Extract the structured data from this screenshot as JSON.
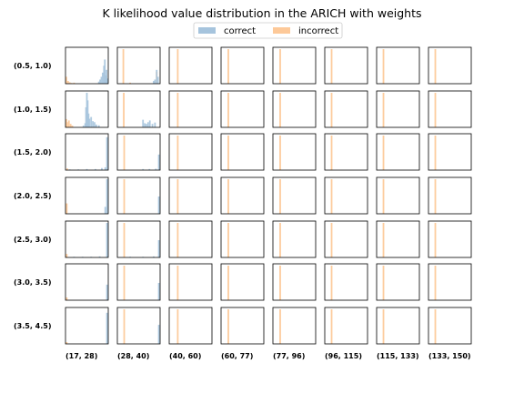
{
  "chart_data": {
    "type": "histogram-grid",
    "title": "K likelihood value distribution in the ARICH with weights",
    "legend": {
      "placement": "top-center",
      "entries": [
        {
          "label": "correct",
          "color": "#a6c4dd"
        },
        {
          "label": "incorrect",
          "color": "#fdc999"
        }
      ]
    },
    "row_labels": [
      "(0.5, 1.0)",
      "(1.0, 1.5)",
      "(1.5, 2.0)",
      "(2.0, 2.5)",
      "(2.5, 3.0)",
      "(3.0, 3.5)",
      "(3.5, 4.5)"
    ],
    "col_labels": [
      "(17, 28)",
      "(28, 40)",
      "(40, 60)",
      "(60, 77)",
      "(77, 96)",
      "(96, 115)",
      "(115, 133)",
      "(133, 150)"
    ],
    "x_range": [
      0,
      1
    ],
    "y_range": [
      0,
      1
    ],
    "grid": false,
    "panels": [
      {
        "row": 0,
        "col": 0,
        "correct": [
          [
            0.78,
            0.06
          ],
          [
            0.81,
            0.12
          ],
          [
            0.84,
            0.2
          ],
          [
            0.87,
            0.32
          ],
          [
            0.9,
            0.52
          ],
          [
            0.92,
            0.7
          ],
          [
            0.94,
            0.24
          ],
          [
            0.96,
            0.4
          ],
          [
            0.98,
            0.15
          ]
        ],
        "incorrect": [
          [
            0.02,
            0.2
          ],
          [
            0.06,
            0.08
          ],
          [
            0.1,
            0.04
          ],
          [
            0.14,
            0.02
          ],
          [
            0.2,
            0.03
          ]
        ]
      },
      {
        "row": 0,
        "col": 1,
        "correct": [
          [
            0.85,
            0.08
          ],
          [
            0.88,
            0.12
          ],
          [
            0.92,
            0.4
          ],
          [
            0.95,
            0.2
          ]
        ],
        "incorrect": [
          [
            0.14,
            1.0
          ],
          [
            0.3,
            0.03
          ],
          [
            0.92,
            0.35
          ]
        ]
      },
      {
        "row": 0,
        "col": 2,
        "correct": [],
        "incorrect": [
          [
            0.2,
            1.0
          ]
        ]
      },
      {
        "row": 0,
        "col": 3,
        "correct": [],
        "incorrect": [
          [
            0.17,
            1.0
          ]
        ]
      },
      {
        "row": 0,
        "col": 4,
        "correct": [],
        "incorrect": [
          [
            0.17,
            1.0
          ]
        ]
      },
      {
        "row": 0,
        "col": 5,
        "correct": [],
        "incorrect": [
          [
            0.16,
            1.0
          ]
        ]
      },
      {
        "row": 0,
        "col": 6,
        "correct": [],
        "incorrect": [
          [
            0.16,
            1.0
          ]
        ]
      },
      {
        "row": 0,
        "col": 7,
        "correct": [],
        "incorrect": [
          [
            0.16,
            1.0
          ]
        ]
      },
      {
        "row": 1,
        "col": 0,
        "correct": [
          [
            0.42,
            0.05
          ],
          [
            0.46,
            0.12
          ],
          [
            0.48,
            0.58
          ],
          [
            0.5,
            1.0
          ],
          [
            0.52,
            0.78
          ],
          [
            0.54,
            0.4
          ],
          [
            0.56,
            0.25
          ],
          [
            0.6,
            0.3
          ],
          [
            0.64,
            0.18
          ],
          [
            0.68,
            0.15
          ],
          [
            0.72,
            0.08
          ],
          [
            0.78,
            0.06
          ]
        ],
        "incorrect": [
          [
            0.02,
            0.24
          ],
          [
            0.04,
            0.15
          ],
          [
            0.08,
            0.2
          ],
          [
            0.12,
            0.1
          ],
          [
            0.16,
            0.05
          ]
        ]
      },
      {
        "row": 1,
        "col": 1,
        "correct": [
          [
            0.6,
            0.22
          ],
          [
            0.64,
            0.12
          ],
          [
            0.68,
            0.1
          ],
          [
            0.72,
            0.15
          ],
          [
            0.76,
            0.2
          ],
          [
            0.82,
            0.1
          ],
          [
            0.88,
            0.14
          ]
        ],
        "incorrect": [
          [
            0.15,
            1.0
          ]
        ]
      },
      {
        "row": 1,
        "col": 2,
        "correct": [],
        "incorrect": [
          [
            0.2,
            1.0
          ]
        ]
      },
      {
        "row": 1,
        "col": 3,
        "correct": [],
        "incorrect": [
          [
            0.17,
            1.0
          ]
        ]
      },
      {
        "row": 1,
        "col": 4,
        "correct": [],
        "incorrect": [
          [
            0.17,
            1.0
          ]
        ]
      },
      {
        "row": 1,
        "col": 5,
        "correct": [],
        "incorrect": [
          [
            0.16,
            1.0
          ]
        ]
      },
      {
        "row": 1,
        "col": 6,
        "correct": [],
        "incorrect": [
          [
            0.16,
            1.0
          ]
        ]
      },
      {
        "row": 1,
        "col": 7,
        "correct": [],
        "incorrect": [
          [
            0.16,
            1.0
          ]
        ]
      },
      {
        "row": 2,
        "col": 0,
        "correct": [
          [
            0.1,
            0.02
          ],
          [
            0.3,
            0.02
          ],
          [
            0.5,
            0.03
          ],
          [
            0.7,
            0.03
          ],
          [
            0.85,
            0.06
          ],
          [
            0.93,
            0.08
          ],
          [
            0.97,
            0.95
          ]
        ],
        "incorrect": [
          [
            0.04,
            0.05
          ]
        ]
      },
      {
        "row": 2,
        "col": 1,
        "correct": [
          [
            0.6,
            0.03
          ],
          [
            0.75,
            0.03
          ],
          [
            0.9,
            0.04
          ],
          [
            0.97,
            0.45
          ]
        ],
        "incorrect": [
          [
            0.16,
            1.0
          ]
        ]
      },
      {
        "row": 2,
        "col": 2,
        "correct": [],
        "incorrect": [
          [
            0.2,
            1.0
          ]
        ]
      },
      {
        "row": 2,
        "col": 3,
        "correct": [],
        "incorrect": [
          [
            0.17,
            1.0
          ]
        ]
      },
      {
        "row": 2,
        "col": 4,
        "correct": [],
        "incorrect": [
          [
            0.17,
            1.0
          ]
        ]
      },
      {
        "row": 2,
        "col": 5,
        "correct": [],
        "incorrect": [
          [
            0.16,
            1.0
          ]
        ]
      },
      {
        "row": 2,
        "col": 6,
        "correct": [],
        "incorrect": [
          [
            0.16,
            1.0
          ]
        ]
      },
      {
        "row": 2,
        "col": 7,
        "correct": [],
        "incorrect": [
          [
            0.16,
            1.0
          ]
        ]
      },
      {
        "row": 3,
        "col": 0,
        "correct": [
          [
            0.93,
            0.2
          ],
          [
            0.97,
            1.0
          ]
        ],
        "incorrect": [
          [
            0.03,
            0.3
          ]
        ]
      },
      {
        "row": 3,
        "col": 1,
        "correct": [
          [
            0.97,
            0.5
          ]
        ],
        "incorrect": [
          [
            0.16,
            1.0
          ]
        ]
      },
      {
        "row": 3,
        "col": 2,
        "correct": [],
        "incorrect": [
          [
            0.2,
            1.0
          ]
        ]
      },
      {
        "row": 3,
        "col": 3,
        "correct": [],
        "incorrect": [
          [
            0.17,
            1.0
          ]
        ]
      },
      {
        "row": 3,
        "col": 4,
        "correct": [],
        "incorrect": [
          [
            0.17,
            1.0
          ]
        ]
      },
      {
        "row": 3,
        "col": 5,
        "correct": [],
        "incorrect": [
          [
            0.16,
            1.0
          ]
        ]
      },
      {
        "row": 3,
        "col": 6,
        "correct": [],
        "incorrect": [
          [
            0.16,
            1.0
          ]
        ]
      },
      {
        "row": 3,
        "col": 7,
        "correct": [],
        "incorrect": [
          [
            0.16,
            1.0
          ]
        ]
      },
      {
        "row": 4,
        "col": 0,
        "correct": [
          [
            0.2,
            0.02
          ],
          [
            0.4,
            0.02
          ],
          [
            0.6,
            0.02
          ],
          [
            0.8,
            0.03
          ],
          [
            0.97,
            1.0
          ]
        ],
        "incorrect": [
          [
            0.03,
            0.1
          ]
        ]
      },
      {
        "row": 4,
        "col": 1,
        "correct": [
          [
            0.3,
            0.02
          ],
          [
            0.6,
            0.02
          ],
          [
            0.85,
            0.03
          ],
          [
            0.97,
            0.5
          ]
        ],
        "incorrect": [
          [
            0.16,
            1.0
          ]
        ]
      },
      {
        "row": 4,
        "col": 2,
        "correct": [],
        "incorrect": [
          [
            0.2,
            1.0
          ]
        ]
      },
      {
        "row": 4,
        "col": 3,
        "correct": [],
        "incorrect": [
          [
            0.17,
            1.0
          ]
        ]
      },
      {
        "row": 4,
        "col": 4,
        "correct": [],
        "incorrect": [
          [
            0.17,
            1.0
          ]
        ]
      },
      {
        "row": 4,
        "col": 5,
        "correct": [],
        "incorrect": [
          [
            0.16,
            1.0
          ]
        ]
      },
      {
        "row": 4,
        "col": 6,
        "correct": [],
        "incorrect": [
          [
            0.16,
            1.0
          ]
        ]
      },
      {
        "row": 4,
        "col": 7,
        "correct": [],
        "incorrect": [
          [
            0.16,
            1.0
          ]
        ]
      },
      {
        "row": 5,
        "col": 0,
        "correct": [
          [
            0.97,
            0.45
          ]
        ],
        "incorrect": [
          [
            0.03,
            0.08
          ]
        ]
      },
      {
        "row": 5,
        "col": 1,
        "correct": [
          [
            0.97,
            0.5
          ]
        ],
        "incorrect": [
          [
            0.16,
            1.0
          ]
        ]
      },
      {
        "row": 5,
        "col": 2,
        "correct": [],
        "incorrect": [
          [
            0.2,
            1.0
          ]
        ]
      },
      {
        "row": 5,
        "col": 3,
        "correct": [],
        "incorrect": [
          [
            0.17,
            1.0
          ]
        ]
      },
      {
        "row": 5,
        "col": 4,
        "correct": [],
        "incorrect": [
          [
            0.17,
            1.0
          ]
        ]
      },
      {
        "row": 5,
        "col": 5,
        "correct": [],
        "incorrect": [
          [
            0.16,
            1.0
          ]
        ]
      },
      {
        "row": 5,
        "col": 6,
        "correct": [],
        "incorrect": [
          [
            0.16,
            1.0
          ]
        ]
      },
      {
        "row": 5,
        "col": 7,
        "correct": [],
        "incorrect": [
          [
            0.16,
            1.0
          ]
        ]
      },
      {
        "row": 6,
        "col": 0,
        "correct": [
          [
            0.97,
            0.9
          ]
        ],
        "incorrect": [
          [
            0.03,
            0.05
          ]
        ]
      },
      {
        "row": 6,
        "col": 1,
        "correct": [
          [
            0.97,
            0.55
          ]
        ],
        "incorrect": [
          [
            0.16,
            1.0
          ]
        ]
      },
      {
        "row": 6,
        "col": 2,
        "correct": [],
        "incorrect": [
          [
            0.2,
            1.0
          ]
        ]
      },
      {
        "row": 6,
        "col": 3,
        "correct": [],
        "incorrect": [
          [
            0.17,
            1.0
          ]
        ]
      },
      {
        "row": 6,
        "col": 4,
        "correct": [],
        "incorrect": [
          [
            0.17,
            1.0
          ]
        ]
      },
      {
        "row": 6,
        "col": 5,
        "correct": [],
        "incorrect": [
          [
            0.16,
            1.0
          ]
        ]
      },
      {
        "row": 6,
        "col": 6,
        "correct": [],
        "incorrect": [
          [
            0.16,
            1.0
          ]
        ]
      },
      {
        "row": 6,
        "col": 7,
        "correct": [],
        "incorrect": [
          [
            0.16,
            1.0
          ]
        ]
      }
    ]
  }
}
